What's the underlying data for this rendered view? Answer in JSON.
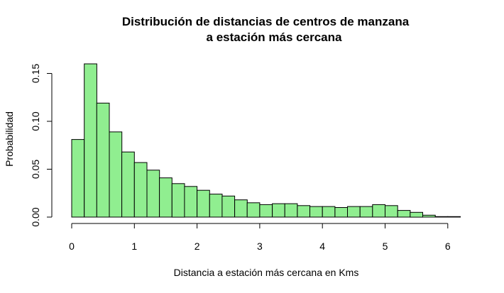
{
  "chart_data": {
    "type": "bar",
    "title_line1": "Distribución de distancias de centros de manzana",
    "title_line2": "a estación más cercana",
    "xlabel": "Distancia a estación más cercana en Kms",
    "ylabel": "Probabilidad",
    "bin_width": 0.2,
    "bin_start": 0.0,
    "xlim": [
      0,
      6.2
    ],
    "ylim": [
      0,
      0.16
    ],
    "x_ticks": [
      "0",
      "1",
      "2",
      "3",
      "4",
      "5",
      "6"
    ],
    "y_ticks": [
      "0.00",
      "0.05",
      "0.10",
      "0.15"
    ],
    "values": [
      0.081,
      0.16,
      0.119,
      0.089,
      0.068,
      0.057,
      0.049,
      0.041,
      0.035,
      0.032,
      0.028,
      0.024,
      0.022,
      0.018,
      0.015,
      0.013,
      0.014,
      0.014,
      0.012,
      0.011,
      0.011,
      0.01,
      0.011,
      0.011,
      0.013,
      0.012,
      0.007,
      0.005,
      0.002,
      0.0005,
      0.0005
    ],
    "bar_color": "#90ee90"
  }
}
